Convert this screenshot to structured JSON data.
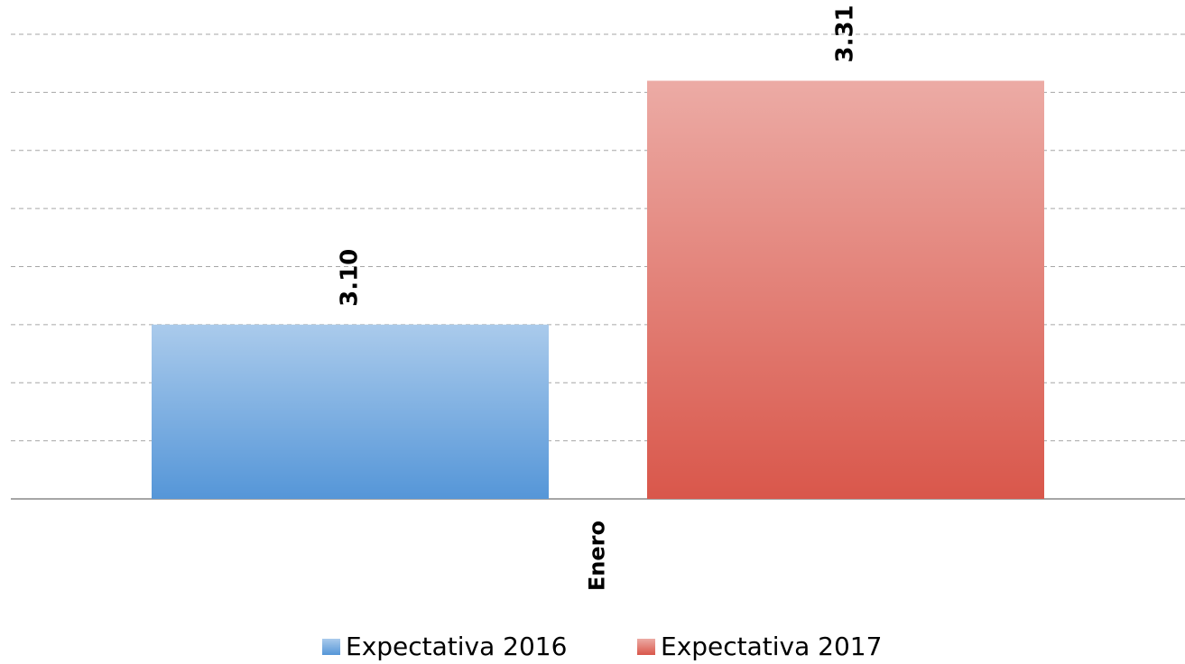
{
  "chart_data": {
    "type": "bar",
    "categories": [
      "Enero"
    ],
    "series": [
      {
        "name": "Expectativa 2016",
        "color": "#5596d8",
        "values": [
          3.1
        ],
        "value_labels": [
          "3.10"
        ]
      },
      {
        "name": "Expectativa 2017",
        "color": "#d9574b",
        "values": [
          3.31
        ],
        "value_labels": [
          "3.31"
        ]
      }
    ],
    "ylim": [
      2.95,
      3.35
    ],
    "yticks": [
      2.95,
      3.0,
      3.05,
      3.1,
      3.15,
      3.2,
      3.25,
      3.3,
      3.35
    ],
    "grid": true
  }
}
